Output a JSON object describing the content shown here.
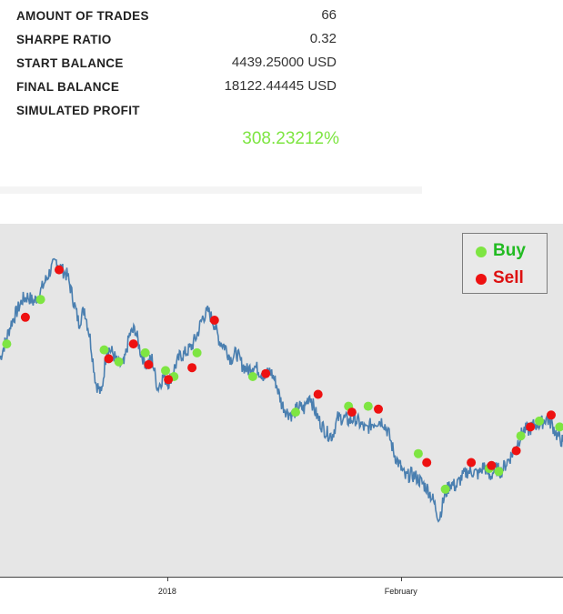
{
  "stats": [
    {
      "label": "AMOUNT OF TRADES",
      "value": "66"
    },
    {
      "label": "SHARPE RATIO",
      "value": "0.32"
    },
    {
      "label": "START BALANCE",
      "value": "4439.25000 USD"
    },
    {
      "label": "FINAL BALANCE",
      "value": "18122.44445 USD"
    },
    {
      "label": "SIMULATED PROFIT",
      "value": ""
    }
  ],
  "profit_value": "308.23212%",
  "colors": {
    "buy": "#7ee542",
    "sell": "#ee1111",
    "line": "#4a7fb0",
    "profit": "#7ee542",
    "chart_bg": "#e6e6e6"
  },
  "chart_data": {
    "type": "line",
    "x_axis": {
      "range": [
        0,
        100
      ],
      "ticks": [
        {
          "x": 29.7,
          "label": "2018"
        },
        {
          "x": 71.2,
          "label": "February"
        }
      ]
    },
    "y_axis": {
      "range": [
        0,
        100
      ],
      "visible": false
    },
    "grid": false,
    "legend": {
      "position": "top-right",
      "entries": [
        {
          "name": "Buy",
          "color": "#7ee542"
        },
        {
          "name": "Sell",
          "color": "#ee1111"
        }
      ]
    },
    "series": [
      {
        "kind": "price",
        "points": [
          [
            0,
            60
          ],
          [
            1,
            66
          ],
          [
            2,
            72
          ],
          [
            3,
            76
          ],
          [
            4,
            80
          ],
          [
            5,
            81
          ],
          [
            6,
            79
          ],
          [
            7,
            82
          ],
          [
            8,
            86
          ],
          [
            9,
            90
          ],
          [
            10,
            93
          ],
          [
            11,
            90
          ],
          [
            12,
            88
          ],
          [
            13,
            80
          ],
          [
            14,
            72
          ],
          [
            15,
            77
          ],
          [
            16,
            67
          ],
          [
            17,
            52
          ],
          [
            18,
            48
          ],
          [
            19,
            64
          ],
          [
            20,
            62
          ],
          [
            21,
            58
          ],
          [
            22,
            58
          ],
          [
            23,
            68
          ],
          [
            24,
            70
          ],
          [
            25,
            62
          ],
          [
            26,
            58
          ],
          [
            27,
            60
          ],
          [
            28,
            50
          ],
          [
            29,
            54
          ],
          [
            30,
            52
          ],
          [
            31,
            57
          ],
          [
            32,
            61
          ],
          [
            33,
            62
          ],
          [
            34,
            64
          ],
          [
            35,
            68
          ],
          [
            36,
            74
          ],
          [
            37,
            76
          ],
          [
            38,
            72
          ],
          [
            39,
            66
          ],
          [
            40,
            64
          ],
          [
            41,
            60
          ],
          [
            42,
            62
          ],
          [
            43,
            58
          ],
          [
            44,
            56
          ],
          [
            45,
            58
          ],
          [
            46,
            56
          ],
          [
            47,
            54
          ],
          [
            48,
            56
          ],
          [
            49,
            52
          ],
          [
            50,
            45
          ],
          [
            51,
            42
          ],
          [
            52,
            41
          ],
          [
            53,
            44
          ],
          [
            54,
            43
          ],
          [
            55,
            48
          ],
          [
            56,
            42
          ],
          [
            57,
            38
          ],
          [
            58,
            35
          ],
          [
            59,
            34
          ],
          [
            60,
            40
          ],
          [
            61,
            40
          ],
          [
            62,
            39
          ],
          [
            63,
            40
          ],
          [
            64,
            38
          ],
          [
            65,
            36
          ],
          [
            66,
            38
          ],
          [
            67,
            39
          ],
          [
            68,
            39
          ],
          [
            69,
            35
          ],
          [
            70,
            28
          ],
          [
            71,
            24
          ],
          [
            72,
            20
          ],
          [
            73,
            21
          ],
          [
            74,
            20
          ],
          [
            75,
            18
          ],
          [
            76,
            16
          ],
          [
            77,
            12
          ],
          [
            78,
            6
          ],
          [
            79,
            14
          ],
          [
            80,
            18
          ],
          [
            81,
            17
          ],
          [
            82,
            20
          ],
          [
            83,
            22
          ],
          [
            84,
            22
          ],
          [
            85,
            21
          ],
          [
            86,
            24
          ],
          [
            87,
            20
          ],
          [
            88,
            23
          ],
          [
            89,
            22
          ],
          [
            90,
            25
          ],
          [
            91,
            28
          ],
          [
            92,
            32
          ],
          [
            93,
            36
          ],
          [
            94,
            36
          ],
          [
            95,
            38
          ],
          [
            96,
            38
          ],
          [
            97,
            40
          ],
          [
            98,
            38
          ],
          [
            99,
            34
          ],
          [
            100,
            32
          ]
        ]
      },
      {
        "name": "Buy",
        "kind": "buy",
        "points": [
          [
            1.2,
            65
          ],
          [
            7.2,
            80
          ],
          [
            18.5,
            63
          ],
          [
            21.1,
            59
          ],
          [
            25.8,
            62
          ],
          [
            29.4,
            56
          ],
          [
            30.9,
            54
          ],
          [
            35,
            62
          ],
          [
            44.9,
            54
          ],
          [
            52.5,
            42
          ],
          [
            61.9,
            44
          ],
          [
            65.4,
            44
          ],
          [
            74.3,
            28
          ],
          [
            79.1,
            16
          ],
          [
            86.9,
            23
          ],
          [
            88.6,
            22
          ],
          [
            92.5,
            34
          ],
          [
            95.8,
            39
          ],
          [
            99.4,
            37
          ]
        ]
      },
      {
        "name": "Sell",
        "kind": "sell",
        "points": [
          [
            4.5,
            74
          ],
          [
            10.5,
            90
          ],
          [
            19.3,
            60
          ],
          [
            23.7,
            65
          ],
          [
            26.4,
            58
          ],
          [
            29.9,
            53
          ],
          [
            34.1,
            57
          ],
          [
            38.1,
            73
          ],
          [
            47.2,
            55
          ],
          [
            56.5,
            48
          ],
          [
            62.5,
            42
          ],
          [
            67.2,
            43
          ],
          [
            75.8,
            25
          ],
          [
            83.7,
            25
          ],
          [
            87.3,
            24
          ],
          [
            91.7,
            29
          ],
          [
            94.2,
            37
          ],
          [
            97.9,
            41
          ]
        ]
      }
    ]
  }
}
